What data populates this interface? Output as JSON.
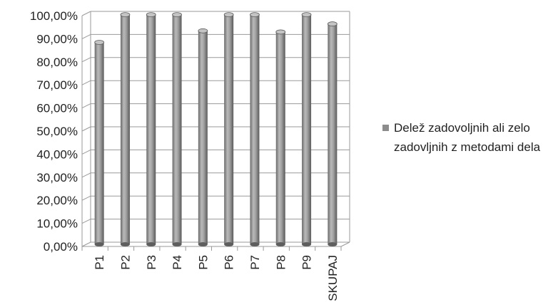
{
  "chart_data": {
    "type": "bar",
    "categories": [
      "P1",
      "P2",
      "P3",
      "P4",
      "P5",
      "P6",
      "P7",
      "P8",
      "P9",
      "SKUPAJ"
    ],
    "series": [
      {
        "name": "Delež zadovoljnih ali zelo zadovljnih z metodami dela",
        "values": [
          87.5,
          99.5,
          99.5,
          99.5,
          92.5,
          99.5,
          99.5,
          92.0,
          99.5,
          95.5
        ]
      }
    ],
    "ylim": [
      0,
      100
    ],
    "yticks": [
      "0,00%",
      "10,00%",
      "20,00%",
      "30,00%",
      "40,00%",
      "50,00%",
      "60,00%",
      "70,00%",
      "80,00%",
      "90,00%",
      "100,00%"
    ],
    "grid": true,
    "legend_position": "right",
    "colors": {
      "bar": "#8f8f8f",
      "bar_light": "#c4c4c4",
      "bar_dark": "#5e5e5e",
      "grid": "#9a9a9a"
    }
  },
  "legend": {
    "text": "Delež zadovoljnih ali zelo zadovljnih z metodami dela"
  }
}
